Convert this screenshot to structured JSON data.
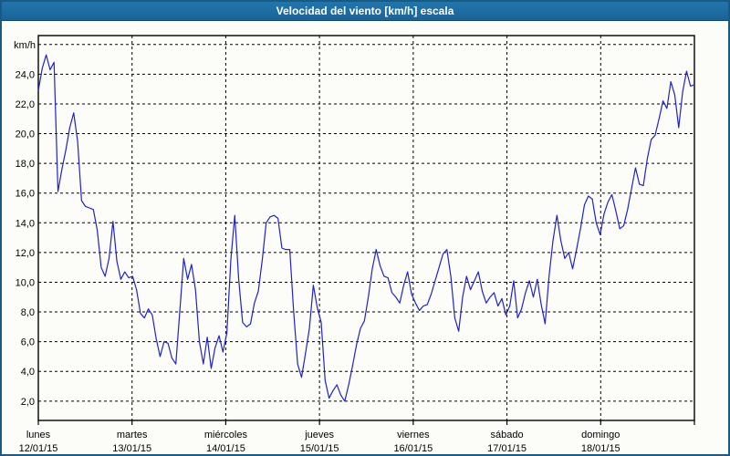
{
  "window": {
    "title": "Velocidad del viento [km/h] escala"
  },
  "colors": {
    "titlebar_bg": "#1d6da3",
    "titlebar_text": "#ffffff",
    "window_border": "#1a5a80",
    "plot_bg": "#fcfdf8",
    "line_color": "#2121cd",
    "grid_color": "#000000"
  },
  "chart_data": {
    "type": "line",
    "title": "Velocidad del viento [km/h] escala",
    "ylabel": "km/h",
    "unit_label": "km/h",
    "ylim": [
      0.7,
      26.6
    ],
    "grid": true,
    "legend": "none",
    "gridline_values": [
      26,
      24,
      22,
      20,
      18,
      16,
      14,
      12,
      10,
      8,
      6,
      4,
      2
    ],
    "y_tick_values": [
      24,
      22,
      20,
      18,
      16,
      14,
      12,
      10,
      8,
      6,
      4,
      2
    ],
    "y_tick_labels": [
      "24,0",
      "22,0",
      "20,0",
      "18,0",
      "16,0",
      "14,0",
      "12,0",
      "10,0",
      "8,0",
      "6,0",
      "4,0",
      "2,0"
    ],
    "x_categories": [
      {
        "day": "lunes",
        "date": "12/01/15"
      },
      {
        "day": "martes",
        "date": "13/01/15"
      },
      {
        "day": "miércoles",
        "date": "14/01/15"
      },
      {
        "day": "jueves",
        "date": "15/01/15"
      },
      {
        "day": "viernes",
        "date": "16/01/15"
      },
      {
        "day": "sábado",
        "date": "17/01/15"
      },
      {
        "day": "domingo",
        "date": "18/01/15"
      }
    ],
    "sampling": "hourly (24 points per day, 7 days)",
    "series": [
      {
        "name": "Velocidad del viento",
        "values": [
          22.9,
          24.4,
          25.3,
          24.3,
          24.8,
          16.1,
          17.6,
          18.9,
          20.4,
          21.4,
          19.5,
          15.5,
          15.1,
          15.0,
          14.9,
          13.5,
          11.0,
          10.4,
          11.6,
          14.1,
          11.4,
          10.2,
          10.7,
          10.3,
          10.4,
          9.5,
          7.9,
          7.6,
          8.2,
          7.8,
          6.2,
          5.0,
          6.0,
          5.9,
          4.9,
          4.5,
          8.0,
          11.6,
          10.2,
          11.2,
          9.5,
          6.0,
          4.5,
          6.3,
          4.2,
          5.6,
          6.4,
          5.3,
          6.6,
          11.5,
          14.5,
          10.2,
          7.3,
          7.0,
          7.2,
          8.6,
          9.4,
          11.5,
          14.0,
          14.4,
          14.5,
          14.3,
          12.3,
          12.2,
          12.2,
          8.0,
          4.5,
          3.6,
          5.2,
          6.9,
          9.8,
          8.3,
          7.3,
          3.4,
          2.2,
          2.7,
          3.1,
          2.4,
          2.0,
          3.1,
          4.4,
          5.8,
          6.9,
          7.4,
          9.0,
          10.9,
          12.2,
          11.1,
          10.4,
          10.3,
          9.3,
          9.0,
          8.6,
          9.8,
          10.7,
          9.2,
          8.6,
          8.1,
          8.4,
          8.5,
          9.2,
          10.1,
          11.0,
          11.9,
          12.2,
          10.4,
          7.6,
          6.7,
          9.0,
          10.4,
          9.5,
          10.1,
          10.7,
          9.4,
          8.6,
          9.0,
          9.3,
          8.4,
          8.9,
          7.8,
          8.4,
          10.1,
          7.6,
          8.2,
          9.3,
          10.1,
          9.0,
          10.2,
          8.5,
          7.2,
          10.4,
          12.8,
          14.5,
          12.8,
          11.6,
          12.0,
          10.9,
          12.2,
          13.6,
          15.2,
          15.8,
          15.6,
          14.0,
          13.2,
          14.6,
          15.4,
          15.9,
          14.8,
          13.6,
          13.8,
          14.9,
          16.3,
          17.7,
          16.6,
          16.5,
          18.3,
          19.6,
          19.9,
          21.0,
          22.2,
          21.7,
          23.5,
          22.6,
          20.4,
          22.8,
          24.2,
          23.2,
          23.3
        ]
      }
    ]
  }
}
